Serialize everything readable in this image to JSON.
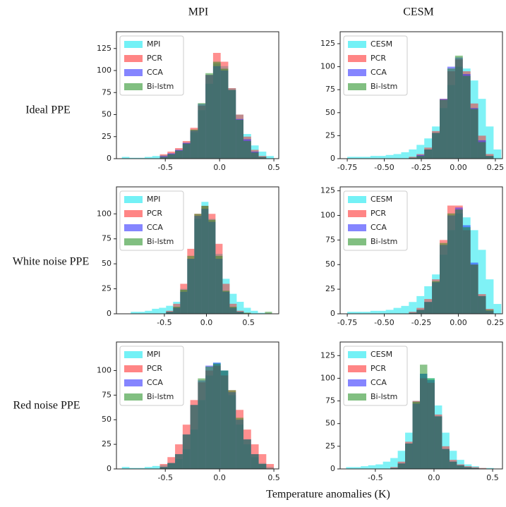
{
  "column_titles": [
    "MPI",
    "CESM"
  ],
  "row_labels": [
    "Ideal PPE",
    "White noise PPE",
    "Red noise PPE"
  ],
  "xlabel": "Temperature anomalies (K)",
  "chart_data": [
    {
      "type": "histogram",
      "legend": "upper left",
      "bins": [
        -0.9,
        -0.83,
        -0.76,
        -0.69,
        -0.62,
        -0.55,
        -0.48,
        -0.41,
        -0.34,
        -0.27,
        -0.2,
        -0.13,
        -0.06,
        0.01,
        0.08,
        0.15,
        0.22,
        0.29,
        0.36,
        0.43,
        0.5
      ],
      "xlim": [
        -0.95,
        0.545
      ],
      "xticks": [
        -0.5,
        {
          "value": 0,
          "label": "0.0"
        },
        0.5
      ],
      "ylim": [
        0,
        144
      ],
      "yticks": [
        0,
        25,
        50,
        75,
        100,
        125
      ],
      "series": [
        {
          "name": "MPI",
          "color": "#00e5ee",
          "values": [
            2,
            1,
            1,
            2,
            3,
            4,
            6,
            10,
            18,
            30,
            55,
            85,
            108,
            105,
            80,
            50,
            28,
            15,
            8,
            3
          ]
        },
        {
          "name": "PCR",
          "color": "#ff2020",
          "values": [
            0,
            0,
            0,
            0,
            0,
            5,
            8,
            12,
            20,
            35,
            60,
            95,
            120,
            110,
            80,
            50,
            25,
            10,
            3,
            0
          ]
        },
        {
          "name": "CCA",
          "color": "#2020ff",
          "values": [
            0,
            0,
            0,
            0,
            0,
            3,
            6,
            10,
            18,
            32,
            62,
            95,
            105,
            100,
            78,
            45,
            22,
            8,
            2,
            0
          ]
        },
        {
          "name": "Bi-lstm",
          "color": "#1a8a1a",
          "values": [
            0,
            0,
            0,
            0,
            0,
            2,
            5,
            9,
            17,
            33,
            63,
            97,
            110,
            102,
            78,
            44,
            20,
            7,
            2,
            0
          ]
        }
      ]
    },
    {
      "type": "histogram",
      "legend": "upper left",
      "bins": [
        -0.75,
        -0.698,
        -0.646,
        -0.594,
        -0.542,
        -0.49,
        -0.438,
        -0.386,
        -0.334,
        -0.282,
        -0.23,
        -0.178,
        -0.126,
        -0.074,
        -0.022,
        0.03,
        0.082,
        0.134,
        0.186,
        0.238,
        0.29
      ],
      "xlim": [
        -0.798,
        0.298
      ],
      "xticks": [
        -0.75,
        {
          "value": -0.5,
          "label": "-0.50"
        },
        -0.25,
        {
          "value": 0,
          "label": "0.00"
        },
        0.25
      ],
      "ylim": [
        0,
        138
      ],
      "yticks": [
        0,
        25,
        50,
        75,
        100,
        125
      ],
      "series": [
        {
          "name": "CESM",
          "color": "#00e5ee",
          "values": [
            2,
            2,
            2,
            3,
            3,
            4,
            5,
            7,
            10,
            15,
            22,
            35,
            55,
            80,
            100,
            98,
            85,
            65,
            35,
            10
          ]
        },
        {
          "name": "PCR",
          "color": "#ff2020",
          "values": [
            0,
            0,
            0,
            0,
            0,
            0,
            0,
            0,
            2,
            5,
            12,
            30,
            65,
            95,
            108,
            95,
            60,
            25,
            5,
            0
          ]
        },
        {
          "name": "CCA",
          "color": "#2020ff",
          "values": [
            0,
            0,
            0,
            0,
            0,
            0,
            0,
            0,
            1,
            4,
            10,
            28,
            65,
            100,
            110,
            92,
            55,
            20,
            3,
            0
          ]
        },
        {
          "name": "Bi-lstm",
          "color": "#1a8a1a",
          "values": [
            0,
            0,
            0,
            0,
            0,
            0,
            0,
            0,
            1,
            3,
            10,
            28,
            64,
            98,
            112,
            90,
            54,
            18,
            3,
            0
          ]
        }
      ]
    },
    {
      "type": "histogram",
      "legend": "upper left",
      "bins": [
        -0.9,
        -0.816,
        -0.732,
        -0.648,
        -0.564,
        -0.48,
        -0.396,
        -0.312,
        -0.228,
        -0.144,
        -0.06,
        0.024,
        0.108,
        0.192,
        0.276,
        0.36,
        0.444,
        0.528,
        0.612,
        0.696,
        0.78
      ],
      "xlim": [
        -1.07,
        0.86
      ],
      "xticks": [
        -0.5,
        {
          "value": 0,
          "label": "0.0"
        },
        0.5
      ],
      "ylim": [
        0,
        127
      ],
      "yticks": [
        0,
        25,
        50,
        75,
        100
      ],
      "series": [
        {
          "name": "MPI",
          "color": "#00e5ee",
          "values": [
            2,
            2,
            3,
            5,
            6,
            8,
            12,
            25,
            55,
            95,
            112,
            95,
            60,
            35,
            20,
            12,
            6,
            3,
            1,
            0
          ]
        },
        {
          "name": "PCR",
          "color": "#ff2020",
          "values": [
            0,
            0,
            0,
            0,
            0,
            3,
            10,
            30,
            65,
            100,
            108,
            100,
            70,
            30,
            10,
            3,
            1,
            0,
            0,
            0
          ]
        },
        {
          "name": "CCA",
          "color": "#2020ff",
          "values": [
            0,
            0,
            0,
            0,
            0,
            2,
            6,
            22,
            55,
            98,
            105,
            92,
            55,
            22,
            6,
            2,
            0,
            0,
            0,
            0
          ]
        },
        {
          "name": "Bi-lstm",
          "color": "#1a8a1a",
          "values": [
            0,
            0,
            0,
            0,
            0,
            2,
            7,
            24,
            58,
            100,
            108,
            94,
            58,
            23,
            7,
            2,
            1,
            0,
            0,
            2
          ]
        }
      ]
    },
    {
      "type": "histogram",
      "legend": "upper left",
      "bins": [
        -0.75,
        -0.698,
        -0.646,
        -0.594,
        -0.542,
        -0.49,
        -0.438,
        -0.386,
        -0.334,
        -0.282,
        -0.23,
        -0.178,
        -0.126,
        -0.074,
        -0.022,
        0.03,
        0.082,
        0.134,
        0.186,
        0.238,
        0.29
      ],
      "xlim": [
        -0.798,
        0.298
      ],
      "xticks": [
        -0.75,
        {
          "value": -0.5,
          "label": "-0.50"
        },
        -0.25,
        {
          "value": 0,
          "label": "0.00"
        },
        0.25
      ],
      "ylim": [
        0,
        129
      ],
      "yticks": [
        0,
        25,
        50,
        75,
        100,
        125
      ],
      "series": [
        {
          "name": "CESM",
          "color": "#00e5ee",
          "values": [
            2,
            2,
            2,
            3,
            3,
            4,
            6,
            8,
            12,
            18,
            28,
            40,
            60,
            85,
            102,
            98,
            85,
            65,
            35,
            10
          ]
        },
        {
          "name": "PCR",
          "color": "#ff2020",
          "values": [
            0,
            0,
            0,
            0,
            0,
            0,
            0,
            0,
            2,
            6,
            15,
            35,
            75,
            110,
            110,
            85,
            50,
            20,
            5,
            0
          ]
        },
        {
          "name": "CCA",
          "color": "#2020ff",
          "values": [
            0,
            0,
            0,
            0,
            0,
            0,
            0,
            0,
            1,
            4,
            12,
            32,
            70,
            100,
            108,
            90,
            52,
            18,
            3,
            0
          ]
        },
        {
          "name": "Bi-lstm",
          "color": "#1a8a1a",
          "values": [
            0,
            0,
            0,
            0,
            0,
            0,
            0,
            0,
            1,
            4,
            12,
            33,
            72,
            102,
            106,
            88,
            50,
            18,
            4,
            0
          ]
        }
      ]
    },
    {
      "type": "histogram",
      "legend": "upper left",
      "bins": [
        -0.9,
        -0.83,
        -0.76,
        -0.69,
        -0.62,
        -0.55,
        -0.48,
        -0.41,
        -0.34,
        -0.27,
        -0.2,
        -0.13,
        -0.06,
        0.01,
        0.08,
        0.15,
        0.22,
        0.29,
        0.36,
        0.43,
        0.5
      ],
      "xlim": [
        -0.95,
        0.545
      ],
      "xticks": [
        -0.5,
        {
          "value": 0,
          "label": "0.0"
        },
        0.5
      ],
      "ylim": [
        0,
        129
      ],
      "yticks": [
        0,
        25,
        50,
        75,
        100
      ],
      "series": [
        {
          "name": "MPI",
          "color": "#00e5ee",
          "values": [
            2,
            1,
            1,
            2,
            3,
            4,
            6,
            10,
            20,
            40,
            70,
            95,
            108,
            100,
            75,
            45,
            25,
            12,
            6,
            2
          ]
        },
        {
          "name": "PCR",
          "color": "#ff2020",
          "values": [
            0,
            0,
            0,
            0,
            0,
            5,
            12,
            25,
            45,
            70,
            88,
            100,
            105,
            95,
            80,
            60,
            40,
            25,
            15,
            5
          ]
        },
        {
          "name": "CCA",
          "color": "#2020ff",
          "values": [
            0,
            0,
            0,
            0,
            0,
            2,
            6,
            15,
            35,
            65,
            90,
            105,
            108,
            100,
            78,
            50,
            30,
            15,
            5,
            0
          ]
        },
        {
          "name": "Bi-lstm",
          "color": "#1a8a1a",
          "values": [
            0,
            0,
            0,
            0,
            0,
            2,
            6,
            15,
            35,
            65,
            92,
            104,
            107,
            100,
            80,
            52,
            30,
            15,
            5,
            0
          ]
        }
      ]
    },
    {
      "type": "histogram",
      "legend": "upper left",
      "bins": [
        -0.75,
        -0.687,
        -0.624,
        -0.561,
        -0.498,
        -0.435,
        -0.372,
        -0.309,
        -0.246,
        -0.183,
        -0.12,
        -0.057,
        0.006,
        0.069,
        0.132,
        0.195,
        0.258,
        0.321,
        0.384,
        0.447,
        0.51
      ],
      "xlim": [
        -0.8,
        0.584
      ],
      "xticks": [
        -0.5,
        {
          "value": 0,
          "label": "0.0"
        },
        0.5
      ],
      "ylim": [
        0,
        140
      ],
      "yticks": [
        0,
        25,
        50,
        75,
        100,
        125
      ],
      "series": [
        {
          "name": "CESM",
          "color": "#00e5ee",
          "values": [
            2,
            2,
            3,
            4,
            5,
            8,
            12,
            20,
            40,
            75,
            105,
            100,
            70,
            40,
            20,
            10,
            5,
            3,
            1,
            1
          ]
        },
        {
          "name": "PCR",
          "color": "#ff2020",
          "values": [
            0,
            0,
            0,
            0,
            0,
            0,
            2,
            8,
            30,
            75,
            100,
            95,
            60,
            25,
            10,
            5,
            3,
            2,
            1,
            0
          ]
        },
        {
          "name": "CCA",
          "color": "#2020ff",
          "values": [
            0,
            0,
            0,
            0,
            0,
            0,
            1,
            6,
            28,
            72,
            105,
            98,
            58,
            22,
            8,
            4,
            2,
            1,
            0,
            0
          ]
        },
        {
          "name": "Bi-lstm",
          "color": "#1a8a1a",
          "values": [
            0,
            0,
            0,
            0,
            0,
            0,
            1,
            6,
            28,
            74,
            115,
            100,
            58,
            22,
            8,
            4,
            2,
            1,
            0,
            0
          ]
        }
      ]
    }
  ]
}
